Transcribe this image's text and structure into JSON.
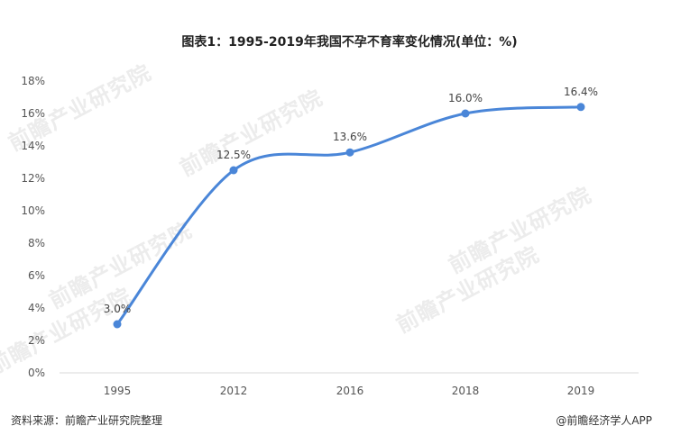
{
  "chart_data": {
    "type": "line",
    "title": "图表1：1995-2019年我国不孕不育率变化情况(单位：%)",
    "categories": [
      "1995",
      "2012",
      "2016",
      "2018",
      "2019"
    ],
    "values": [
      3.0,
      12.5,
      13.6,
      16.0,
      16.4
    ],
    "data_labels": [
      "3.0%",
      "12.5%",
      "13.6%",
      "16.0%",
      "16.4%"
    ],
    "y_ticks": [
      "0%",
      "2%",
      "4%",
      "6%",
      "8%",
      "10%",
      "12%",
      "14%",
      "16%",
      "18%"
    ],
    "ylim": [
      0,
      18
    ],
    "xlabel": "",
    "ylabel": "",
    "grid": false,
    "smooth": true,
    "series_color": "#4a86d8"
  },
  "footer": {
    "source": "资料来源：前瞻产业研究院整理",
    "credit": "@前瞻经济学人APP"
  },
  "watermark": {
    "text": "前瞻产业研究院"
  }
}
